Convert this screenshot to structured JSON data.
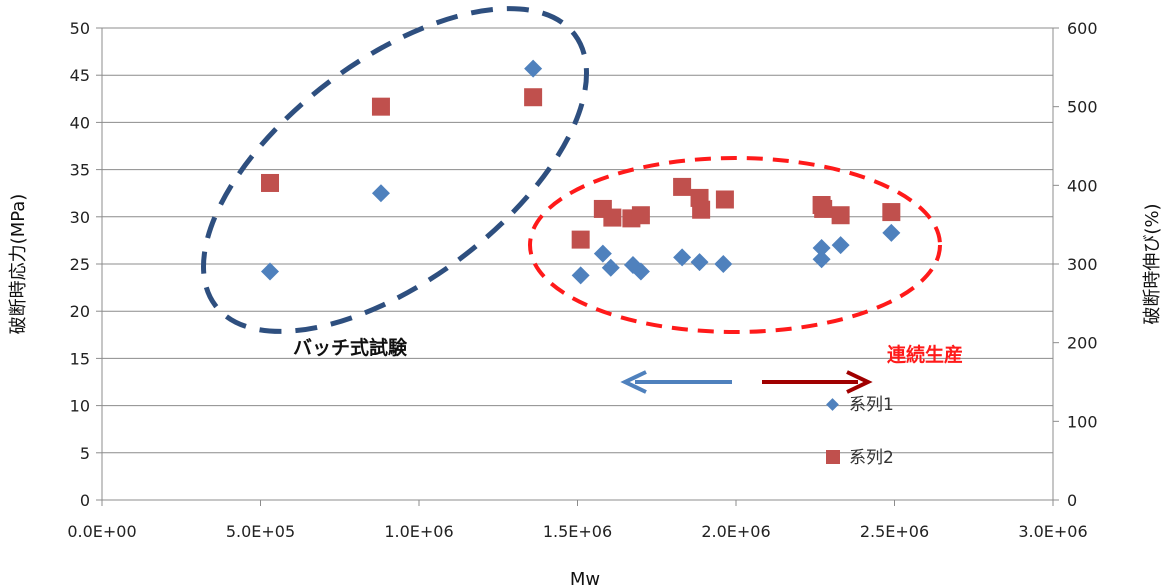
{
  "chart_data": {
    "type": "scatter",
    "xlabel": "Mw",
    "ylabel_left": "破断時応力(MPa)",
    "ylabel_right": "破断時伸び(%)",
    "xlim": [
      0,
      3000000
    ],
    "ylim_left": [
      0,
      50
    ],
    "ylim_right": [
      0,
      600
    ],
    "x_ticks": [
      "0.0E+00",
      "5.0E+05",
      "1.0E+06",
      "1.5E+06",
      "2.0E+06",
      "2.5E+06",
      "3.0E+06"
    ],
    "y_left_ticks": [
      "0",
      "5",
      "10",
      "15",
      "20",
      "25",
      "30",
      "35",
      "40",
      "45",
      "50"
    ],
    "y_right_ticks": [
      "0",
      "100",
      "200",
      "300",
      "400",
      "500",
      "600"
    ],
    "grid": "horizontal",
    "legend_position": "bottom-right",
    "series": [
      {
        "name": "系列1",
        "axis": "left",
        "marker": "diamond",
        "color": "#4F81BD",
        "points": [
          [
            530000,
            24.2
          ],
          [
            880000,
            32.5
          ],
          [
            1360000,
            45.7
          ],
          [
            1510000,
            23.8
          ],
          [
            1580000,
            26.1
          ],
          [
            1605000,
            24.6
          ],
          [
            1675000,
            24.9
          ],
          [
            1700000,
            24.2
          ],
          [
            1830000,
            25.7
          ],
          [
            1885000,
            25.2
          ],
          [
            1960000,
            25.0
          ],
          [
            2270000,
            25.5
          ],
          [
            2270000,
            26.7
          ],
          [
            2330000,
            27.0
          ],
          [
            2490000,
            28.3
          ]
        ]
      },
      {
        "name": "系列2",
        "axis": "right",
        "marker": "square",
        "color": "#C0504D",
        "points": [
          [
            530000,
            403
          ],
          [
            880000,
            500
          ],
          [
            1360000,
            512
          ],
          [
            1510000,
            331
          ],
          [
            1580000,
            370
          ],
          [
            1610000,
            359
          ],
          [
            1670000,
            358
          ],
          [
            1700000,
            362
          ],
          [
            1830000,
            398
          ],
          [
            1885000,
            384
          ],
          [
            1890000,
            369
          ],
          [
            1965000,
            382
          ],
          [
            2270000,
            375
          ],
          [
            2275000,
            370
          ],
          [
            2330000,
            362
          ],
          [
            2490000,
            366
          ]
        ]
      }
    ],
    "annotations": {
      "batch_label": "バッチ式試験",
      "continuous_label": "連続生産",
      "batch_color": "#2E4F7F",
      "continuous_color": "#FF1A1A",
      "arrow_left_color": "#4F81BD",
      "arrow_right_color": "#A00000"
    }
  }
}
